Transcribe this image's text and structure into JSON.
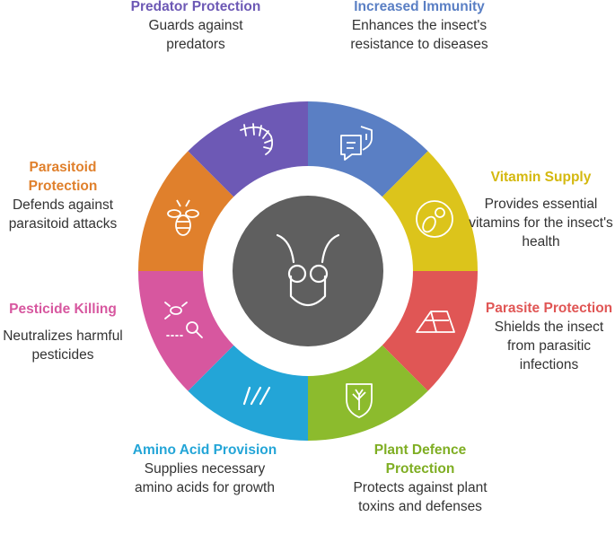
{
  "segments": [
    {
      "id": "immunity",
      "title": "Increased Immunity",
      "description": "Enhances the insect's resistance to diseases",
      "color": "#5a7fc4",
      "icon": "shield-chat-icon"
    },
    {
      "id": "vitamin",
      "title": "Vitamin Supply",
      "description": "Provides essential vitamins for the insect's health",
      "color": "#dcc41b",
      "icon": "vitamin-icon"
    },
    {
      "id": "parasite",
      "title": "Parasite Protection",
      "description": "Shields the insect from parasitic infections",
      "color": "#e05655",
      "icon": "tent-icon"
    },
    {
      "id": "plant",
      "title": "Plant Defence Protection",
      "description": "Protects against plant toxins and defenses",
      "color": "#8cbb2d",
      "icon": "plant-shield-icon"
    },
    {
      "id": "amino",
      "title": "Amino Acid Provision",
      "description": "Supplies necessary amino acids for growth",
      "color": "#23a5d7",
      "icon": "amino-icon"
    },
    {
      "id": "pesticide",
      "title": "Pesticide Killing",
      "description": "Neutralizes harmful pesticides",
      "color": "#d7579f",
      "icon": "bug-search-icon"
    },
    {
      "id": "parasitoid",
      "title": "Parasitoid Protection",
      "description": "Defends against parasitoid attacks",
      "color": "#e0802c",
      "icon": "bee-icon"
    },
    {
      "id": "predator",
      "title": "Predator Protection",
      "description": "Guards against predators",
      "color": "#6d59b5",
      "icon": "centipede-icon"
    }
  ],
  "center": {
    "color": "#5f5f5f",
    "icon": "insect-head-icon"
  }
}
